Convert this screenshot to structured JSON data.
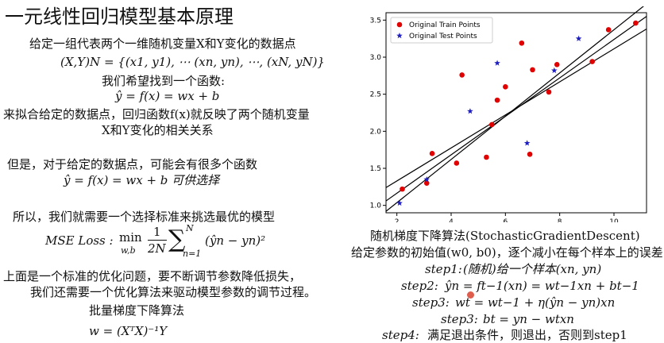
{
  "slide": {
    "title": "一元线性回归模型基本原理"
  },
  "left": {
    "line1": "给定一组代表两个一维随机变量X和Y变化的数据点",
    "line2": "(X,Y)N = {(x1, y1), ⋯ (xn, yn), ⋯, (xN, yN)}",
    "line3": "我们希望找到一个函数:",
    "line4": "ŷ = f(x) = wx + b",
    "line5": "来拟合给定的数据点，回归函数f(x)就反映了两个随机变量",
    "line6": "X和Y变化的相关关系",
    "line7": "但是，对于给定的数据点，可能会有很多个函数",
    "line8": "ŷ = f(x) = wx + b   可供选择",
    "line9": "所以，我们就需要一个选择标准来挑选最优的模型",
    "mse_label": "MSE Loss :",
    "mse_min": "min",
    "mse_sub": "w,b",
    "mse_frac_num": "1",
    "mse_frac_den": "2N",
    "mse_sum_top": "N",
    "mse_sum_bottom": "n=1",
    "mse_term": "(ŷn − yn)²",
    "line10": "上面是一个标准的优化问题，要不断调节参数降低损失，",
    "line11": "我们还需要一个优化算法来驱动模型参数的调节过程。",
    "line12": "批量梯度下降算法",
    "line13": "w = (XᵀX)⁻¹Y"
  },
  "right": {
    "sgd_title": "随机梯度下降算法(StochasticGradientDescent)",
    "sgd_line1": "给定参数的初始值(w0, b0)，逐个减小在每个样本上的误差",
    "step1_label": "step1:",
    "step1_text": "(随机)给一个样本(xn, yn)",
    "step2_label": "step2:",
    "step2_text": "ŷn = ft−1(xn) = wt−1xn + bt−1",
    "step3a_label": "step3:",
    "step3a_text": "wt = wt−1 + η(ŷn − yn)xn",
    "step3b_label": "step3:",
    "step3b_text": "bt = yn − wtxn",
    "step4_label": "step4:",
    "step4_text": "满足退出条件，则退出，否则到step1"
  },
  "chart_data": {
    "type": "scatter",
    "xlim": [
      1.6,
      11.2
    ],
    "ylim": [
      0.9,
      3.6
    ],
    "xticks": [
      2,
      4,
      6,
      8,
      10
    ],
    "yticks": [
      1.0,
      1.5,
      2.0,
      2.5,
      3.0,
      3.5
    ],
    "xtick_labels": [
      "2",
      "4",
      "6",
      "8",
      "10"
    ],
    "ytick_labels": [
      "1.0",
      "1.5",
      "2.0",
      "2.5",
      "3.0",
      "3.5"
    ],
    "legend_position": "top-left",
    "colors": {
      "train": "#e00000",
      "test": "#1f1fbf",
      "line": "#000000"
    },
    "series": [
      {
        "name": "Original Train Points",
        "marker": "circle",
        "points": [
          [
            2.2,
            1.22
          ],
          [
            3.1,
            1.3
          ],
          [
            3.3,
            1.7
          ],
          [
            4.2,
            1.57
          ],
          [
            4.4,
            2.76
          ],
          [
            5.3,
            1.65
          ],
          [
            5.5,
            2.09
          ],
          [
            5.7,
            2.42
          ],
          [
            6.0,
            2.6
          ],
          [
            6.6,
            3.19
          ],
          [
            6.9,
            1.69
          ],
          [
            7.0,
            2.83
          ],
          [
            7.6,
            2.53
          ],
          [
            7.9,
            2.9
          ],
          [
            9.2,
            2.94
          ],
          [
            9.8,
            3.37
          ],
          [
            10.8,
            3.46
          ]
        ]
      },
      {
        "name": "Original Test Points",
        "marker": "star",
        "points": [
          [
            2.1,
            1.03
          ],
          [
            3.1,
            1.35
          ],
          [
            4.7,
            2.27
          ],
          [
            5.7,
            2.92
          ],
          [
            6.8,
            1.84
          ],
          [
            7.8,
            2.82
          ],
          [
            8.7,
            3.25
          ]
        ]
      }
    ],
    "lines": [
      {
        "x": [
          1.6,
          11.2
        ],
        "y": [
          1.24,
          3.38
        ]
      },
      {
        "x": [
          1.6,
          11.2
        ],
        "y": [
          1.06,
          3.55
        ]
      },
      {
        "x": [
          1.6,
          11.2
        ],
        "y": [
          0.92,
          3.72
        ]
      }
    ]
  }
}
